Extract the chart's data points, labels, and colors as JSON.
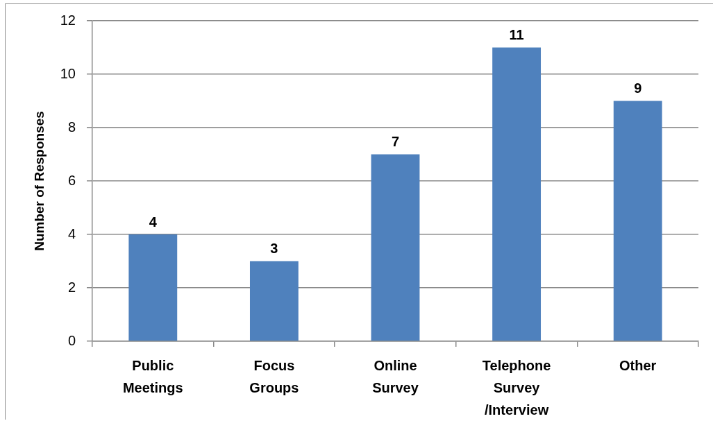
{
  "chart_data": {
    "type": "bar",
    "ylabel": "Number of Responses",
    "categories": [
      "Public Meetings",
      "Focus Groups",
      "Online Survey",
      "Telephone Survey /Interview",
      "Other"
    ],
    "values": [
      4,
      3,
      7,
      11,
      9
    ],
    "color": "#4f81bd",
    "ylim": [
      0,
      12
    ],
    "yticks": [
      0,
      2,
      4,
      6,
      8,
      10,
      12
    ],
    "grid": "y",
    "data_labels": true
  }
}
